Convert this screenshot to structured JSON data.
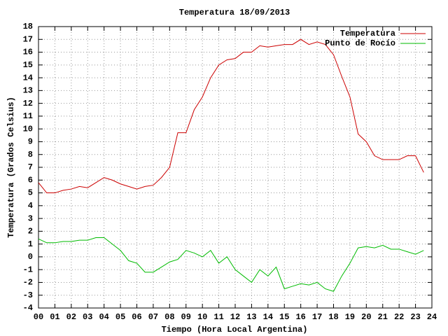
{
  "chart_data": {
    "type": "line",
    "title": "Temperatura 18/09/2013",
    "x_label": "Tiempo (Hora Local Argentina)",
    "y_label": "Temperatura (Grados Celsius)",
    "x": [
      0,
      0.5,
      1,
      1.5,
      2,
      2.5,
      3,
      3.5,
      4,
      4.5,
      5,
      5.5,
      6,
      6.5,
      7,
      7.5,
      8,
      8.5,
      9,
      9.5,
      10,
      10.5,
      11,
      11.5,
      12,
      12.5,
      13,
      13.5,
      14,
      14.5,
      15,
      15.5,
      16,
      16.5,
      17,
      17.5,
      18,
      18.5,
      19,
      19.5,
      20,
      20.5,
      21,
      21.5,
      22,
      22.5,
      23,
      23.5
    ],
    "series": [
      {
        "name": "Temperatura",
        "color": "#cc0000",
        "values": [
          5.8,
          5.0,
          5.0,
          5.2,
          5.3,
          5.5,
          5.4,
          5.8,
          6.2,
          6.0,
          5.7,
          5.5,
          5.3,
          5.5,
          5.6,
          6.2,
          7.0,
          9.7,
          9.7,
          11.5,
          12.5,
          14.0,
          15.0,
          15.4,
          15.5,
          16.0,
          16.0,
          16.5,
          16.4,
          16.5,
          16.6,
          16.6,
          17.0,
          16.6,
          16.8,
          16.6,
          15.8,
          14.1,
          12.5,
          9.6,
          9.0,
          7.9,
          7.6,
          7.6,
          7.6,
          7.9,
          7.9,
          6.6
        ]
      },
      {
        "name": "Punto de Rocío",
        "color": "#00bb00",
        "values": [
          1.4,
          1.1,
          1.1,
          1.2,
          1.2,
          1.3,
          1.3,
          1.5,
          1.5,
          1.0,
          0.5,
          -0.3,
          -0.5,
          -1.2,
          -1.2,
          -0.8,
          -0.4,
          -0.2,
          0.5,
          0.3,
          0.0,
          0.5,
          -0.5,
          0.0,
          -1.0,
          -1.5,
          -2.0,
          -1.0,
          -1.5,
          -0.8,
          -2.5,
          -2.3,
          -2.1,
          -2.2,
          -2.0,
          -2.5,
          -2.7,
          -1.5,
          -0.5,
          0.7,
          0.8,
          0.7,
          0.9,
          0.6,
          0.6,
          0.4,
          0.2,
          0.5
        ]
      }
    ],
    "xlim": [
      0,
      24
    ],
    "xticks": [
      {
        "value": 0,
        "label": "00"
      },
      {
        "value": 1,
        "label": "01"
      },
      {
        "value": 2,
        "label": "02"
      },
      {
        "value": 3,
        "label": "03"
      },
      {
        "value": 4,
        "label": "04"
      },
      {
        "value": 5,
        "label": "05"
      },
      {
        "value": 6,
        "label": "06"
      },
      {
        "value": 7,
        "label": "07"
      },
      {
        "value": 8,
        "label": "08"
      },
      {
        "value": 9,
        "label": "09"
      },
      10,
      11,
      12,
      13,
      14,
      15,
      16,
      17,
      18,
      19,
      20,
      21,
      22,
      23,
      24
    ],
    "ylim": [
      -4,
      18
    ],
    "yticks": [
      -4,
      -3,
      -2,
      -1,
      0,
      1,
      2,
      3,
      4,
      5,
      6,
      7,
      8,
      9,
      10,
      11,
      12,
      13,
      14,
      15,
      16,
      17,
      18
    ],
    "grid": true,
    "legend": "top-right"
  }
}
